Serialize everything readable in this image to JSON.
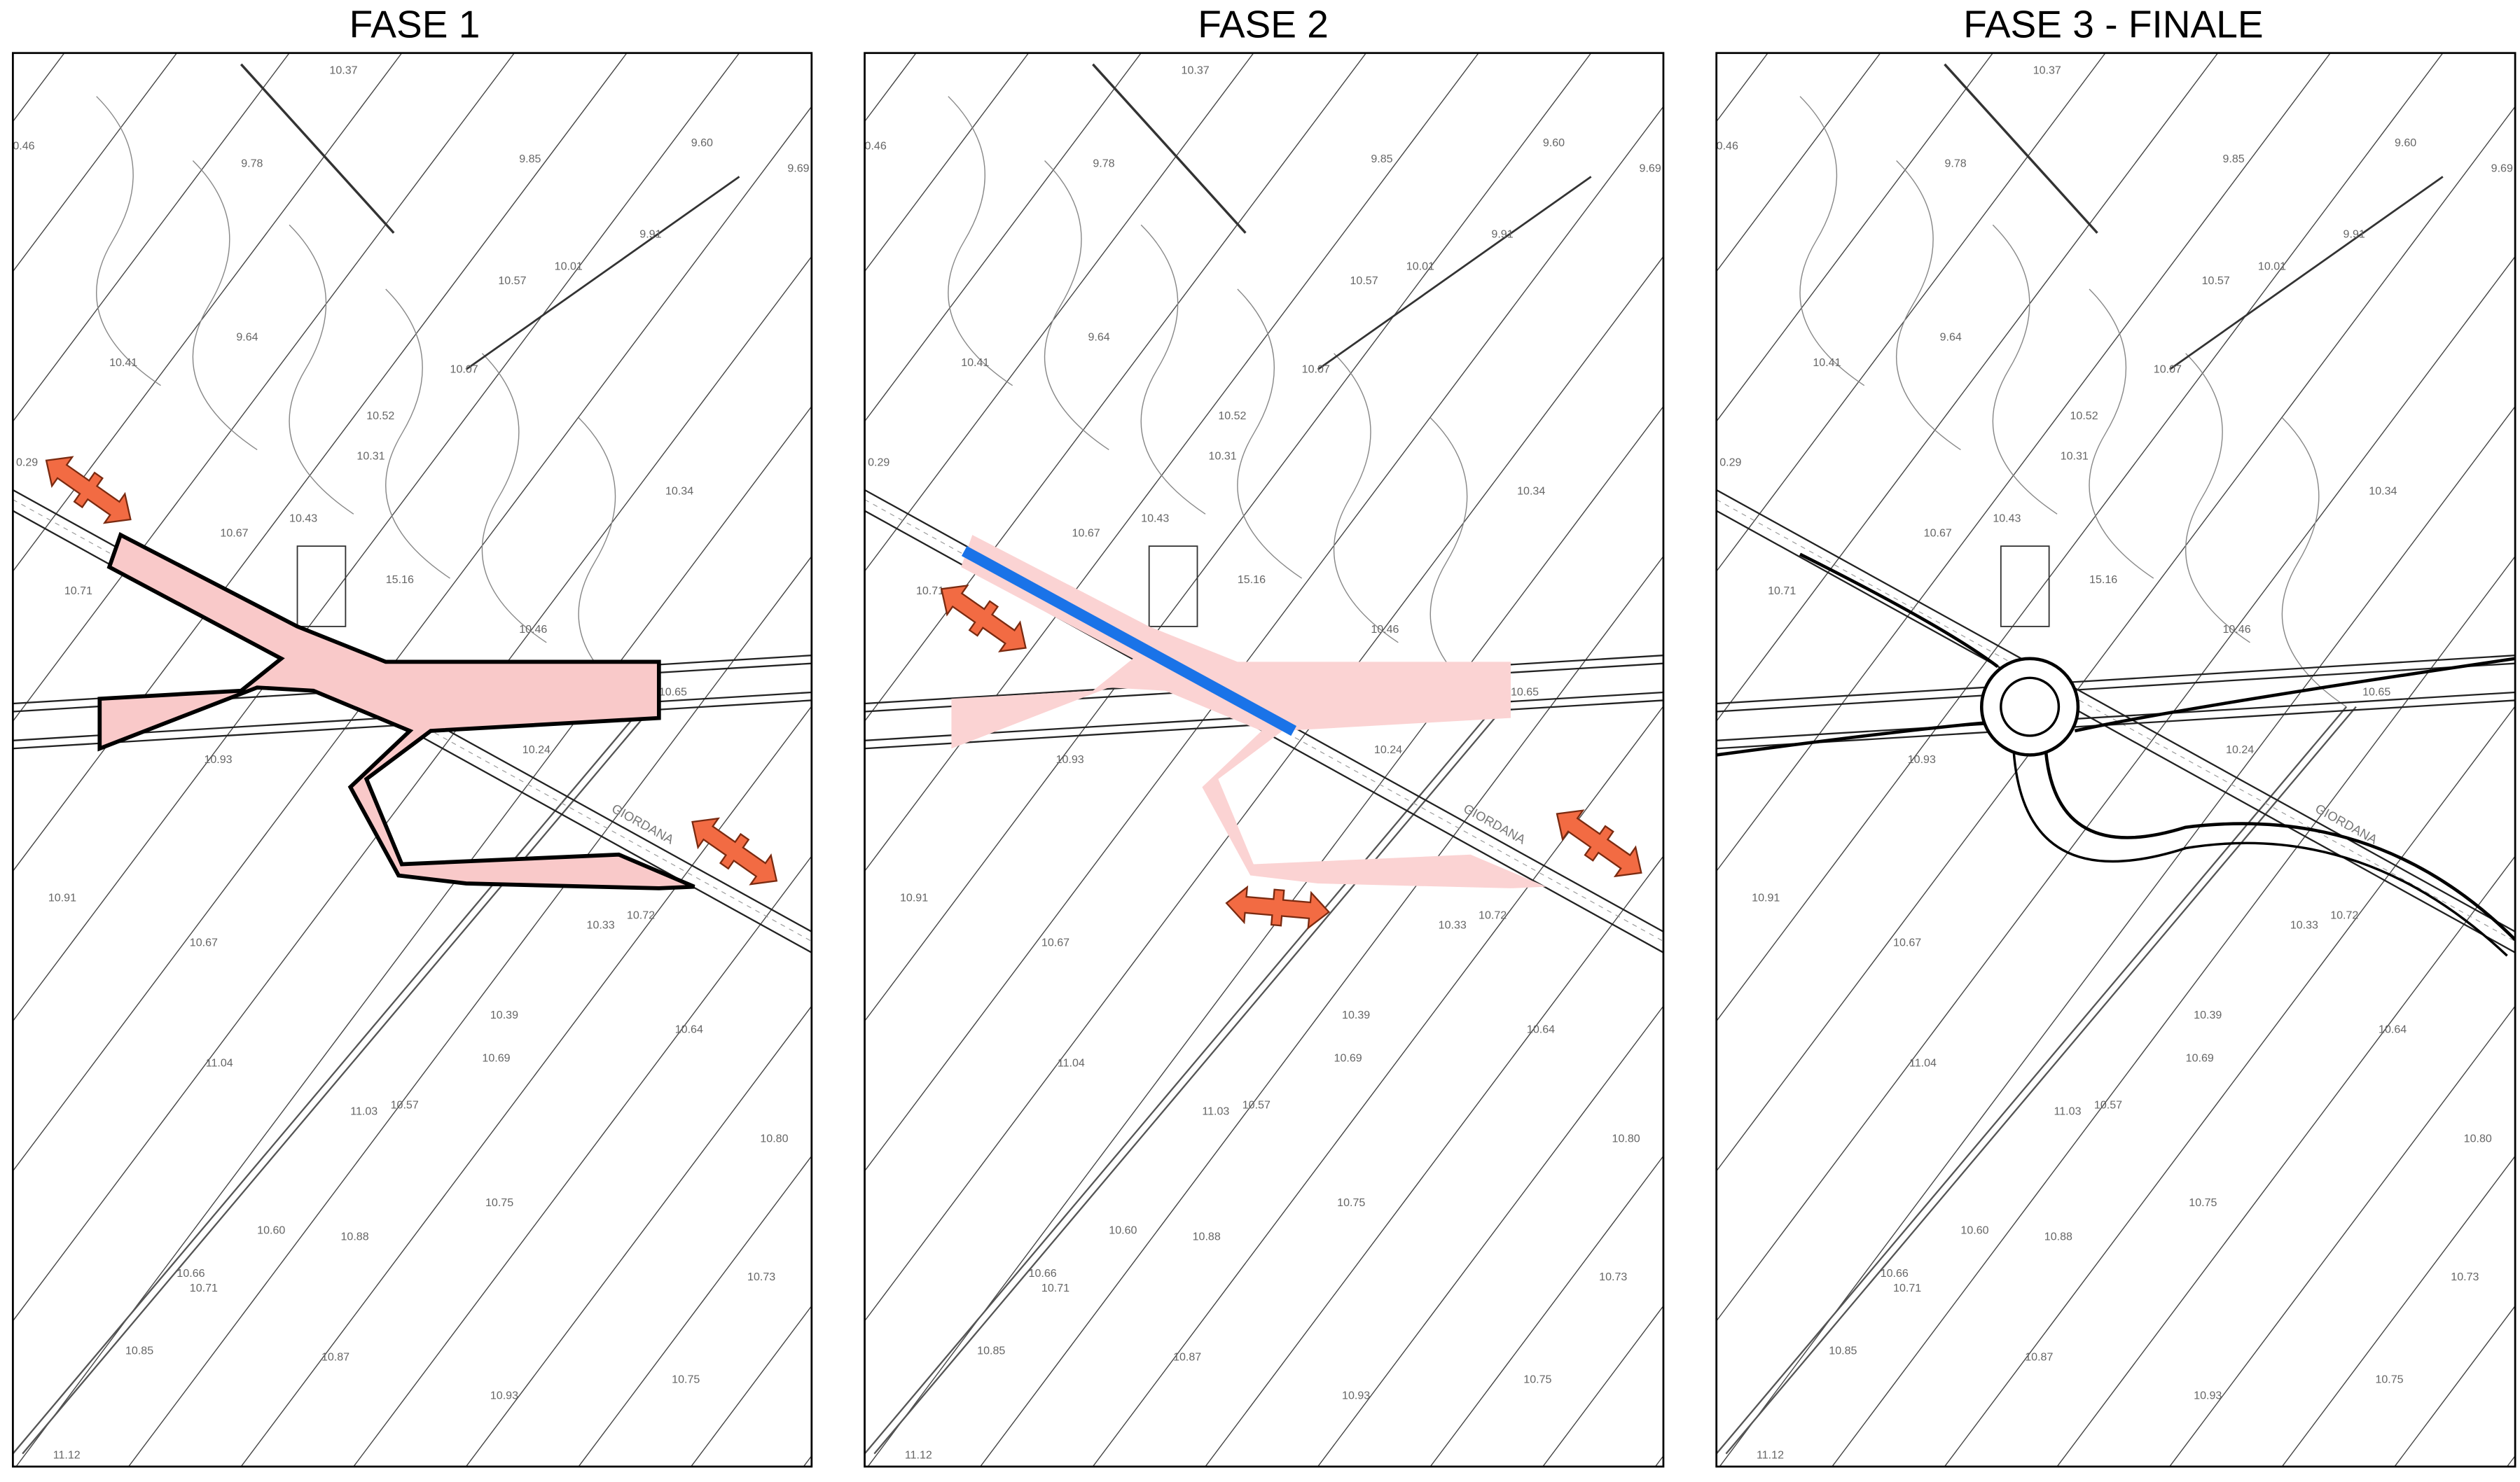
{
  "panels": [
    {
      "title": "FASE 1"
    },
    {
      "title": "FASE 2"
    },
    {
      "title": "FASE 3 - FINALE"
    }
  ],
  "spot_heights": [
    "10.37",
    "0.46",
    "9.78",
    "9.85",
    "9.60",
    "9.69",
    "9.91",
    "10.01",
    "10.57",
    "9.64",
    "10.41",
    "10.07",
    "10.52",
    "10.31",
    "0.29",
    "10.34",
    "10.67",
    "10.43",
    "15.16",
    "10.71",
    "10.46",
    "10.65",
    "10.93",
    "10.24",
    "10.91",
    "10.72",
    "10.33",
    "10.67",
    "10.39",
    "10.64",
    "10.69",
    "11.04",
    "11.03",
    "10.57",
    "10.80",
    "10.75",
    "10.60",
    "10.88",
    "10.66",
    "10.71",
    "10.73",
    "10.85",
    "10.87",
    "10.75",
    "10.93",
    "11.12"
  ],
  "road_name": "GIORDANA"
}
